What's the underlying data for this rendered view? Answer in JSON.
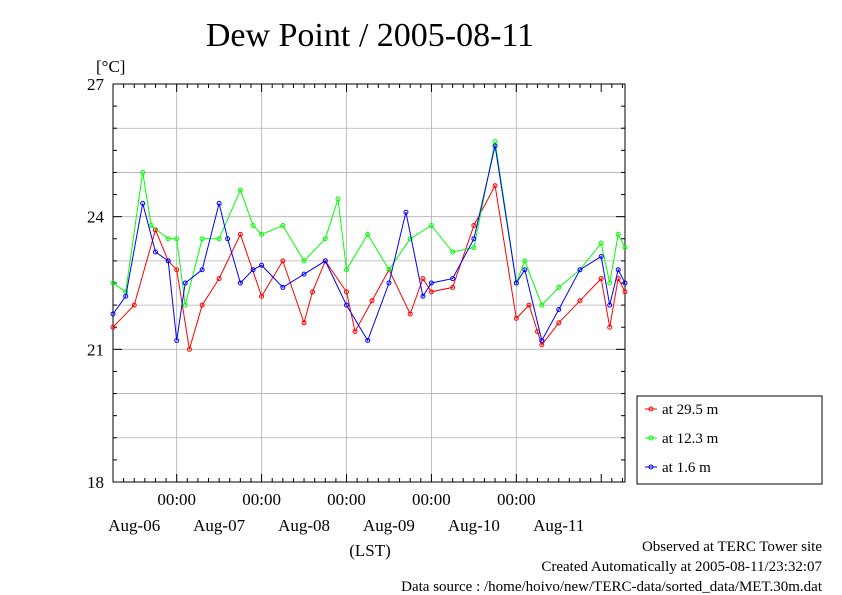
{
  "chart_data": {
    "type": "line",
    "title": "Dew Point / 2005-08-11",
    "ylabel": "[°C]",
    "xlabel": "(LST)",
    "ylim": [
      18,
      27
    ],
    "yticks": [
      "18",
      "21",
      "24",
      "27"
    ],
    "x_time_labels": [
      "00:00",
      "00:00",
      "00:00",
      "00:00",
      "00:00"
    ],
    "x_date_labels": [
      "Aug-06",
      "Aug-07",
      "Aug-08",
      "Aug-09",
      "Aug-10",
      "Aug-11"
    ],
    "x_range_days": [
      -0.75,
      5.28
    ],
    "grid": true,
    "legend_position": "right-bottom",
    "series": [
      {
        "name": "at 29.5 m",
        "color": "#ff0000",
        "x": [
          -0.75,
          -0.5,
          -0.25,
          -0.1,
          0,
          0.15,
          0.3,
          0.5,
          0.75,
          1,
          1.25,
          1.5,
          1.6,
          1.75,
          2,
          2.1,
          2.3,
          2.5,
          2.75,
          2.9,
          3,
          3.25,
          3.5,
          3.75,
          4,
          4.15,
          4.25,
          4.3,
          4.5,
          4.75,
          5,
          5.1,
          5.2,
          5.28
        ],
        "values": [
          21.5,
          22.0,
          23.7,
          23.0,
          22.8,
          21.0,
          22.0,
          22.6,
          23.6,
          22.2,
          23.0,
          21.6,
          22.3,
          23.0,
          22.3,
          21.4,
          22.1,
          22.8,
          21.8,
          22.6,
          22.3,
          22.4,
          23.8,
          24.7,
          21.7,
          22.0,
          21.4,
          21.1,
          21.6,
          22.1,
          22.6,
          21.5,
          22.6,
          22.3
        ]
      },
      {
        "name": "at 12.3 m",
        "color": "#00ff00",
        "x": [
          -0.75,
          -0.6,
          -0.4,
          -0.3,
          -0.1,
          0,
          0.1,
          0.3,
          0.5,
          0.75,
          0.9,
          1,
          1.25,
          1.5,
          1.75,
          1.9,
          2,
          2.25,
          2.5,
          2.75,
          3,
          3.25,
          3.5,
          3.75,
          4,
          4.1,
          4.3,
          4.5,
          4.75,
          5,
          5.1,
          5.2,
          5.28
        ],
        "values": [
          22.5,
          22.3,
          25.0,
          23.8,
          23.5,
          23.5,
          22.0,
          23.5,
          23.5,
          24.6,
          23.8,
          23.6,
          23.8,
          23.0,
          23.5,
          24.4,
          22.8,
          23.6,
          22.8,
          23.5,
          23.8,
          23.2,
          23.3,
          25.7,
          22.5,
          23.0,
          22.0,
          22.4,
          22.8,
          23.4,
          22.5,
          23.6,
          23.3
        ]
      },
      {
        "name": "at 1.6 m",
        "color": "#0000ff",
        "x": [
          -0.75,
          -0.6,
          -0.4,
          -0.25,
          -0.1,
          0,
          0.1,
          0.3,
          0.5,
          0.6,
          0.75,
          0.9,
          1,
          1.25,
          1.5,
          1.75,
          2,
          2.25,
          2.5,
          2.7,
          2.9,
          3,
          3.25,
          3.5,
          3.75,
          4,
          4.1,
          4.3,
          4.5,
          4.75,
          5,
          5.1,
          5.2,
          5.28
        ],
        "values": [
          21.8,
          22.2,
          24.3,
          23.2,
          23.0,
          21.2,
          22.5,
          22.8,
          24.3,
          23.5,
          22.5,
          22.8,
          22.9,
          22.4,
          22.7,
          23.0,
          22.0,
          21.2,
          22.5,
          24.1,
          22.2,
          22.5,
          22.6,
          23.5,
          25.6,
          22.5,
          22.8,
          21.2,
          21.9,
          22.8,
          23.1,
          22.0,
          22.8,
          22.5
        ]
      }
    ]
  },
  "footer": {
    "line1": "Observed at TERC Tower site",
    "line2": "Created Automatically at 2005-08-11/23:32:07",
    "line3": "Data source : /home/hoivo/new/TERC-data/sorted_data/MET.30m.dat"
  }
}
